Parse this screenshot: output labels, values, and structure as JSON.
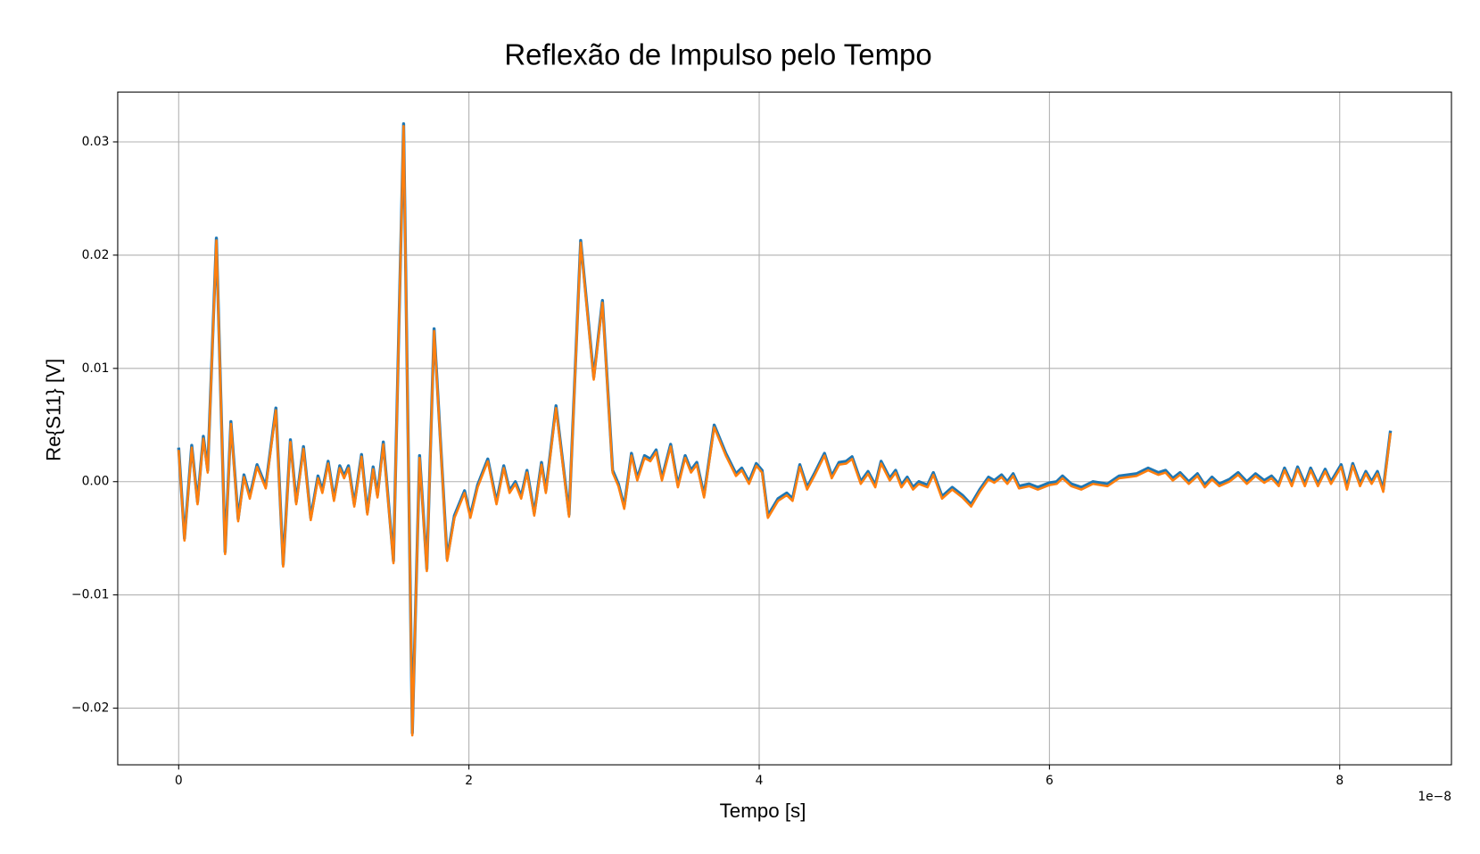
{
  "chart_data": {
    "type": "line",
    "title": "Reflexão de Impulso pelo Tempo",
    "x_label": "Tempo [s]",
    "y_label": "Re{S11} [V]",
    "x_offset_label": "1e−8",
    "x": [
      0,
      0.04,
      0.09,
      0.13,
      0.17,
      0.2,
      0.26,
      0.32,
      0.36,
      0.41,
      0.45,
      0.49,
      0.54,
      0.6,
      0.67,
      0.72,
      0.77,
      0.81,
      0.86,
      0.91,
      0.96,
      0.99,
      1.03,
      1.07,
      1.11,
      1.14,
      1.17,
      1.21,
      1.26,
      1.3,
      1.34,
      1.37,
      1.41,
      1.48,
      1.55,
      1.61,
      1.66,
      1.71,
      1.76,
      1.85,
      1.9,
      1.97,
      2.01,
      2.06,
      2.13,
      2.19,
      2.24,
      2.28,
      2.32,
      2.36,
      2.4,
      2.45,
      2.5,
      2.53,
      2.6,
      2.69,
      2.77,
      2.86,
      2.92,
      2.99,
      3.03,
      3.07,
      3.12,
      3.16,
      3.21,
      3.25,
      3.29,
      3.33,
      3.39,
      3.44,
      3.49,
      3.53,
      3.57,
      3.62,
      3.69,
      3.77,
      3.84,
      3.88,
      3.93,
      3.98,
      4.02,
      4.06,
      4.13,
      4.19,
      4.23,
      4.28,
      4.33,
      4.38,
      4.45,
      4.5,
      4.55,
      4.6,
      4.64,
      4.7,
      4.75,
      4.8,
      4.84,
      4.9,
      4.94,
      4.98,
      5.02,
      5.06,
      5.1,
      5.16,
      5.2,
      5.26,
      5.33,
      5.4,
      5.46,
      5.52,
      5.58,
      5.62,
      5.67,
      5.71,
      5.75,
      5.79,
      5.86,
      5.92,
      6,
      6.05,
      6.09,
      6.15,
      6.22,
      6.3,
      6.4,
      6.48,
      6.6,
      6.68,
      6.75,
      6.8,
      6.85,
      6.9,
      6.96,
      7.02,
      7.07,
      7.12,
      7.17,
      7.24,
      7.3,
      7.36,
      7.42,
      7.48,
      7.53,
      7.58,
      7.62,
      7.67,
      7.71,
      7.76,
      7.8,
      7.85,
      7.9,
      7.94,
      8.01,
      8.05,
      8.09,
      8.14,
      8.18,
      8.22,
      8.26,
      8.3,
      8.35
    ],
    "series": [
      {
        "color": "#1f77b4",
        "values": [
          0.003,
          -0.005,
          0.0032,
          -0.0018,
          0.004,
          0.001,
          0.0215,
          -0.0062,
          0.0053,
          -0.0033,
          0.0006,
          -0.0013,
          0.0015,
          -0.0004,
          0.0065,
          -0.0073,
          0.0037,
          -0.0018,
          0.0031,
          -0.0032,
          0.0005,
          -0.0008,
          0.0018,
          -0.0015,
          0.0014,
          0.0005,
          0.0014,
          -0.002,
          0.0024,
          -0.0027,
          0.0013,
          -0.0012,
          0.0035,
          -0.007,
          0.0316,
          -0.0222,
          0.0023,
          -0.0077,
          0.0135,
          -0.0068,
          -0.003,
          -0.0008,
          -0.003,
          -0.0003,
          0.002,
          -0.0018,
          0.0014,
          -0.0008,
          0,
          -0.0013,
          0.001,
          -0.0028,
          0.0017,
          -0.0008,
          0.0067,
          -0.0029,
          0.0213,
          0.0092,
          0.016,
          0.001,
          -0.0002,
          -0.0022,
          0.0025,
          0.0003,
          0.0023,
          0.002,
          0.0028,
          0.0003,
          0.0033,
          -0.0003,
          0.0023,
          0.001,
          0.0017,
          -0.0012,
          0.005,
          0.0025,
          0.0007,
          0.0012,
          0,
          0.0016,
          0.001,
          -0.003,
          -0.0015,
          -0.001,
          -0.0015,
          0.0015,
          -0.0005,
          0.0007,
          0.0025,
          0.0005,
          0.0017,
          0.0018,
          0.0022,
          0,
          0.0009,
          -0.0003,
          0.0018,
          0.0003,
          0.001,
          -0.0003,
          0.0004,
          -0.0005,
          0,
          -0.0003,
          0.0008,
          -0.0013,
          -0.0005,
          -0.0012,
          -0.002,
          -0.0007,
          0.0004,
          0.0001,
          0.0006,
          0,
          0.0007,
          -0.0004,
          -0.0002,
          -0.0005,
          -0.0001,
          0,
          0.0005,
          -0.0002,
          -0.0005,
          0,
          -0.0002,
          0.0005,
          0.0007,
          0.0012,
          0.0008,
          0.001,
          0.0003,
          0.0008,
          0,
          0.0007,
          -0.0003,
          0.0004,
          -0.0002,
          0.0002,
          0.0008,
          0,
          0.0007,
          0.0001,
          0.0005,
          -0.0002,
          0.0012,
          -0.0002,
          0.0013,
          -0.0002,
          0.0012,
          -0.0002,
          0.0011,
          0,
          0.0015,
          -0.0005,
          0.0016,
          -0.0002,
          0.0009,
          0,
          0.0009,
          -0.0007,
          0.0045
        ]
      },
      {
        "color": "#ff7f0e",
        "values": [
          0.0028,
          -0.0052,
          0.003,
          -0.002,
          0.0038,
          0.0008,
          0.0213,
          -0.0064,
          0.0051,
          -0.0035,
          0.0004,
          -0.0015,
          0.0013,
          -0.0006,
          0.0063,
          -0.0075,
          0.0035,
          -0.002,
          0.0029,
          -0.0034,
          0.0003,
          -0.001,
          0.0016,
          -0.0017,
          0.0012,
          0.0003,
          0.0012,
          -0.0022,
          0.0022,
          -0.0029,
          0.0011,
          -0.0014,
          0.0033,
          -0.0072,
          0.0314,
          -0.0224,
          0.0021,
          -0.0079,
          0.0133,
          -0.007,
          -0.0032,
          -0.001,
          -0.0032,
          -0.0005,
          0.0018,
          -0.002,
          0.0012,
          -0.001,
          -0.0002,
          -0.0015,
          0.0008,
          -0.003,
          0.0015,
          -0.001,
          0.0065,
          -0.0031,
          0.0211,
          0.009,
          0.0158,
          0.0008,
          -0.0004,
          -0.0024,
          0.0023,
          0.0001,
          0.0021,
          0.0018,
          0.0026,
          0.0001,
          0.0031,
          -0.0005,
          0.0021,
          0.0008,
          0.0015,
          -0.0014,
          0.0048,
          0.0023,
          0.0005,
          0.001,
          -0.0002,
          0.0014,
          0.0008,
          -0.0032,
          -0.0017,
          -0.0012,
          -0.0017,
          0.0013,
          -0.0007,
          0.0005,
          0.0023,
          0.0003,
          0.0015,
          0.0016,
          0.002,
          -0.0002,
          0.0007,
          -0.0005,
          0.0016,
          0.0001,
          0.0008,
          -0.0005,
          0.0002,
          -0.0007,
          -0.0002,
          -0.0005,
          0.0006,
          -0.0015,
          -0.0007,
          -0.0014,
          -0.0022,
          -0.0009,
          0.0002,
          -0.0001,
          0.0004,
          -0.0002,
          0.0005,
          -0.0006,
          -0.0004,
          -0.0007,
          -0.0003,
          -0.0002,
          0.0003,
          -0.0004,
          -0.0007,
          -0.0002,
          -0.0004,
          0.0003,
          0.0005,
          0.001,
          0.0006,
          0.0008,
          0.0001,
          0.0006,
          -0.0002,
          0.0005,
          -0.0005,
          0.0002,
          -0.0004,
          0,
          0.0006,
          -0.0002,
          0.0005,
          -0.0001,
          0.0003,
          -0.0004,
          0.001,
          -0.0004,
          0.0011,
          -0.0004,
          0.001,
          -0.0004,
          0.0009,
          -0.0002,
          0.0013,
          -0.0007,
          0.0014,
          -0.0004,
          0.0007,
          -0.0002,
          0.0007,
          -0.0009,
          0.0043
        ]
      }
    ],
    "xlim": [
      -0.42,
      8.77
    ],
    "ylim": [
      -0.025,
      0.0344
    ],
    "xticks": [
      0,
      2,
      4,
      6,
      8
    ],
    "yticks": [
      {
        "value": -0.02,
        "label": "−0.02"
      },
      {
        "value": -0.01,
        "label": "−0.01"
      },
      {
        "value": 0,
        "label": "0.00"
      },
      {
        "value": 0.01,
        "label": "0.01"
      },
      {
        "value": 0.02,
        "label": "0.02"
      },
      {
        "value": 0.03,
        "label": "0.03"
      }
    ],
    "grid": true
  }
}
